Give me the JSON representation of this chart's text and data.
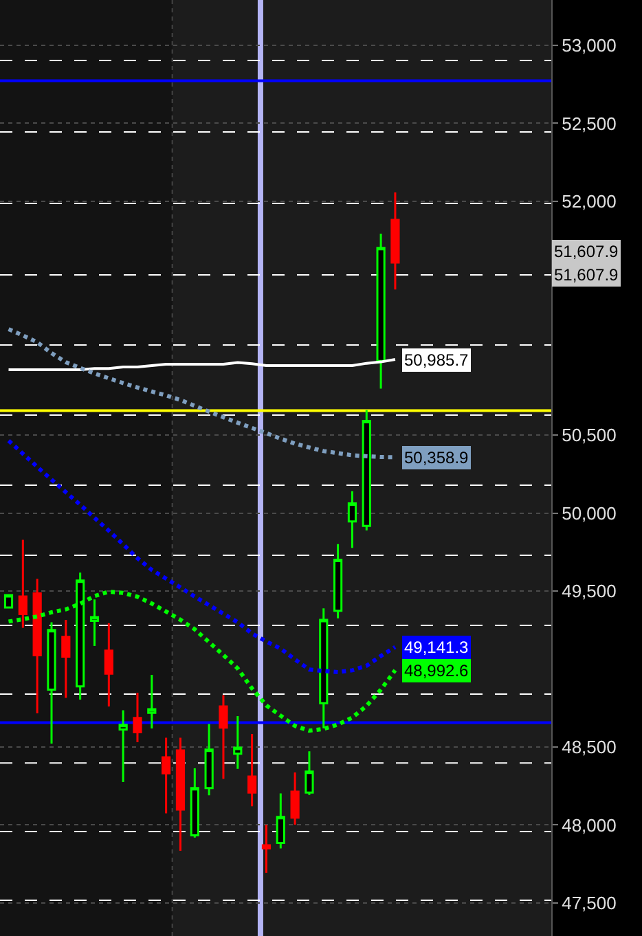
{
  "chart_data": {
    "type": "candlestick",
    "categories": [
      null,
      null,
      null,
      null,
      null,
      null,
      null,
      null,
      null,
      null,
      null,
      null,
      null,
      null,
      null,
      null,
      null,
      null,
      null,
      null,
      null,
      null,
      null,
      null,
      null,
      null,
      null,
      null
    ],
    "ohlc": [
      [
        49395,
        49480,
        49390,
        49474
      ],
      [
        49465,
        49829,
        49265,
        49353
      ],
      [
        49485,
        49579,
        48716,
        49089
      ],
      [
        48868,
        49300,
        48522,
        49250
      ],
      [
        49206,
        49315,
        48815,
        49080
      ],
      [
        48889,
        49618,
        48804,
        49568
      ],
      [
        49309,
        49447,
        49148,
        49333
      ],
      [
        49118,
        49294,
        48760,
        48971
      ],
      [
        48613,
        48736,
        48275,
        48642
      ],
      [
        48686,
        48848,
        48531,
        48595
      ],
      [
        48719,
        48963,
        48619,
        48742
      ],
      [
        48434,
        48560,
        48075,
        48331
      ],
      [
        48478,
        48560,
        47835,
        48099
      ],
      [
        47934,
        48363,
        47919,
        48237
      ],
      [
        48237,
        48648,
        48190,
        48484
      ],
      [
        48760,
        48833,
        48296,
        48625
      ],
      [
        48457,
        48698,
        48360,
        48496
      ],
      [
        48311,
        48584,
        48120,
        48208
      ],
      [
        47870,
        48002,
        47693,
        47850
      ],
      [
        47885,
        48202,
        47850,
        48052
      ],
      [
        48214,
        48337,
        48002,
        48047
      ],
      [
        48208,
        48473,
        48193,
        48343
      ],
      [
        48781,
        49389,
        48620,
        49316
      ],
      [
        49374,
        49801,
        49325,
        49701
      ],
      [
        49947,
        50141,
        49777,
        50062
      ],
      [
        49918,
        50661,
        49889,
        50591
      ],
      [
        50976,
        51793,
        50799,
        51701
      ],
      [
        51881,
        52057,
        51434,
        51607.9
      ]
    ],
    "series": [
      {
        "type": "line",
        "color": "#ffffff",
        "line_style": "solid",
        "values": [
          50920,
          50920,
          50920,
          50920,
          50920,
          50920,
          50928,
          50928,
          50937,
          50937,
          50946,
          50955,
          50955,
          50955,
          50955,
          50955,
          50966,
          50958,
          50946,
          50946,
          50946,
          50946,
          50946,
          50946,
          50946,
          50961,
          50970,
          50985.7
        ],
        "value_labels": [
          null,
          null,
          null,
          null,
          null,
          null,
          null,
          null,
          null,
          null,
          null,
          null,
          null,
          null,
          null,
          null,
          null,
          null,
          null,
          null,
          null,
          null,
          null,
          null,
          null,
          null,
          null,
          "50,985.7"
        ]
      },
      {
        "type": "line",
        "color": "#7f9fc0",
        "line_style": "dotted",
        "values": [
          51180,
          51140,
          51096,
          51026,
          50968,
          50931,
          50896,
          50865,
          50834,
          50806,
          50780,
          50755,
          50726,
          50688,
          50651,
          50615,
          50580,
          50546,
          50513,
          50478,
          50446,
          50421,
          50398,
          50385,
          50371,
          50365,
          50360,
          50358.9
        ],
        "value_labels": [
          null,
          null,
          null,
          null,
          null,
          null,
          null,
          null,
          null,
          null,
          null,
          null,
          null,
          null,
          null,
          null,
          null,
          null,
          null,
          null,
          null,
          null,
          null,
          null,
          null,
          null,
          null,
          "50,358.9"
        ]
      },
      {
        "type": "line",
        "color": "#0000ff",
        "line_style": "dotted",
        "values": [
          50465,
          50381,
          50297,
          50215,
          50134,
          50054,
          49970,
          49887,
          49800,
          49711,
          49636,
          49580,
          49523,
          49465,
          49410,
          49355,
          49300,
          49228,
          49177,
          49131,
          49062,
          48997,
          48988,
          48980,
          48992,
          49021,
          49084,
          49141.3
        ],
        "value_labels": [
          null,
          null,
          null,
          null,
          null,
          null,
          null,
          null,
          null,
          null,
          null,
          null,
          null,
          null,
          null,
          null,
          null,
          null,
          null,
          null,
          null,
          null,
          null,
          null,
          null,
          null,
          null,
          "49,141.3"
        ]
      },
      {
        "type": "line",
        "color": "#00ff00",
        "line_style": "dotted",
        "values": [
          49305,
          49320,
          49337,
          49364,
          49383,
          49419,
          49468,
          49496,
          49488,
          49464,
          49420,
          49369,
          49316,
          49255,
          49173,
          49090,
          49004,
          48876,
          48767,
          48701,
          48635,
          48605,
          48616,
          48644,
          48689,
          48764,
          48868,
          48992.6
        ],
        "value_labels": [
          null,
          null,
          null,
          null,
          null,
          null,
          null,
          null,
          null,
          null,
          null,
          null,
          null,
          null,
          null,
          null,
          null,
          null,
          null,
          null,
          null,
          null,
          null,
          null,
          null,
          null,
          null,
          "48,992.6"
        ]
      }
    ],
    "annotations": [
      "51,607.9",
      "51,607.9"
    ],
    "ref_lines": [
      {
        "axis": "y",
        "value": 52773,
        "color": "#0000ff",
        "line_style": "solid"
      },
      {
        "axis": "y",
        "value": 48657,
        "color": "#0000ff",
        "line_style": "solid"
      },
      {
        "axis": "y",
        "value": 50658,
        "color": "#ffff00",
        "line_style": "solid"
      },
      {
        "axis": "y",
        "value": 52903,
        "color": "#ffffff",
        "line_style": "dashed"
      },
      {
        "axis": "y",
        "value": 52445,
        "color": "#ffffff",
        "line_style": "dashed"
      },
      {
        "axis": "y",
        "value": 51986,
        "color": "#ffffff",
        "line_style": "dashed"
      },
      {
        "axis": "y",
        "value": 51528,
        "color": "#ffffff",
        "line_style": "dashed"
      },
      {
        "axis": "y",
        "value": 51078,
        "color": "#ffffff",
        "line_style": "dashed"
      },
      {
        "axis": "y",
        "value": 50629,
        "color": "#ffffff",
        "line_style": "dashed"
      },
      {
        "axis": "y",
        "value": 50179,
        "color": "#ffffff",
        "line_style": "dashed"
      },
      {
        "axis": "y",
        "value": 49730,
        "color": "#ffffff",
        "line_style": "dashed"
      },
      {
        "axis": "y",
        "value": 49280,
        "color": "#ffffff",
        "line_style": "dashed"
      },
      {
        "axis": "y",
        "value": 48839,
        "color": "#ffffff",
        "line_style": "dashed"
      },
      {
        "axis": "y",
        "value": 48398,
        "color": "#ffffff",
        "line_style": "dashed"
      },
      {
        "axis": "y",
        "value": 47958,
        "color": "#ffffff",
        "line_style": "dashed"
      },
      {
        "axis": "y",
        "value": 47517,
        "color": "#ffffff",
        "line_style": "dashed"
      }
    ],
    "ylim": [
      47288,
      53291
    ],
    "yticks": [
      {
        "value": 47500,
        "label": "47,500"
      },
      {
        "value": 48000,
        "label": "48,000"
      },
      {
        "value": 48500,
        "label": "48,500"
      },
      {
        "value": 49500,
        "label": "49,500"
      },
      {
        "value": 50000,
        "label": "50,000"
      },
      {
        "value": 50500,
        "label": "50,500"
      },
      {
        "value": 52000,
        "label": "52,000"
      },
      {
        "value": 52500,
        "label": "52,500"
      },
      {
        "value": 53000,
        "label": "53,000"
      }
    ],
    "grid": "y",
    "marker": "none",
    "tick_labels": "y"
  }
}
